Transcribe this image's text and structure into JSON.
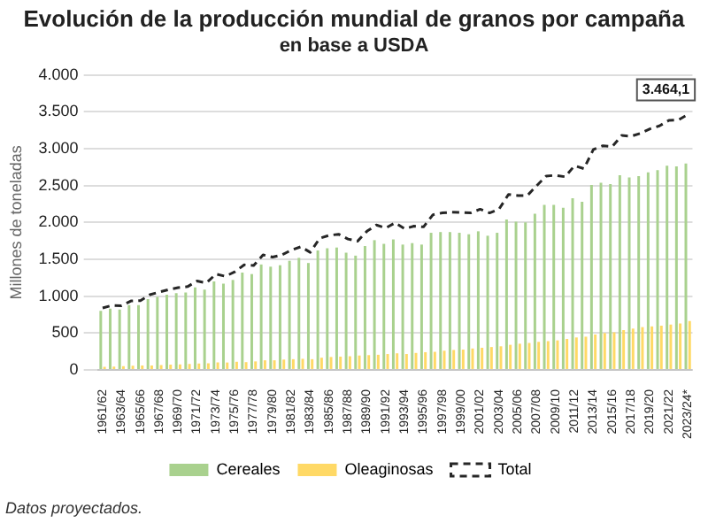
{
  "chart_data": {
    "type": "bar",
    "title": "Evolución de la producción mundial de granos por campaña",
    "subtitle": "en base a USDA",
    "ylabel": "Millones de toneladas",
    "categories": [
      "1961/62",
      null,
      "1963/64",
      null,
      "1965/66",
      null,
      "1967/68",
      null,
      "1969/70",
      null,
      "1971/72",
      null,
      "1973/74",
      null,
      "1975/76",
      null,
      "1977/78",
      null,
      "1979/80",
      null,
      "1981/82",
      null,
      "1983/84",
      null,
      "1985/86",
      null,
      "1987/88",
      null,
      "1989/90",
      null,
      "1991/92",
      null,
      "1993/94",
      null,
      "1995/96",
      null,
      "1997/98",
      null,
      "1999/00",
      null,
      "2001/02",
      null,
      "2003/04",
      null,
      "2005/06",
      null,
      "2007/08",
      null,
      "2009/10",
      null,
      "2011/12",
      null,
      "2013/14",
      null,
      "2015/16",
      null,
      "2017/18",
      null,
      "2019/20",
      null,
      "2021/22",
      null,
      "2023/24*"
    ],
    "series": [
      {
        "name": "Cereales",
        "color": "#a9d18e",
        "values": [
          800,
          830,
          820,
          880,
          880,
          960,
          990,
          1020,
          1040,
          1050,
          1120,
          1090,
          1200,
          1170,
          1220,
          1320,
          1300,
          1430,
          1400,
          1420,
          1480,
          1520,
          1450,
          1620,
          1650,
          1660,
          1590,
          1550,
          1680,
          1760,
          1710,
          1770,
          1700,
          1720,
          1700,
          1860,
          1870,
          1870,
          1860,
          1840,
          1880,
          1820,
          1860,
          2040,
          2010,
          2000,
          2120,
          2240,
          2240,
          2200,
          2330,
          2280,
          2510,
          2540,
          2520,
          2640,
          2610,
          2630,
          2680,
          2710,
          2770,
          2760,
          2800
        ]
      },
      {
        "name": "Oleaginosas",
        "color": "#ffd966",
        "values": [
          40,
          45,
          50,
          55,
          60,
          60,
          65,
          70,
          75,
          80,
          85,
          90,
          100,
          100,
          110,
          105,
          115,
          130,
          130,
          140,
          145,
          150,
          145,
          165,
          175,
          180,
          185,
          195,
          200,
          205,
          215,
          225,
          215,
          230,
          240,
          245,
          260,
          270,
          275,
          290,
          300,
          310,
          320,
          340,
          355,
          365,
          380,
          390,
          400,
          420,
          440,
          450,
          480,
          500,
          510,
          540,
          560,
          580,
          590,
          600,
          615,
          630,
          664
        ]
      },
      {
        "name": "Total",
        "type": "line",
        "color": "#262626",
        "line_style": "dashed",
        "marker": "none",
        "values": [
          840,
          875,
          870,
          935,
          940,
          1020,
          1055,
          1090,
          1115,
          1130,
          1205,
          1180,
          1300,
          1270,
          1330,
          1425,
          1415,
          1560,
          1530,
          1560,
          1625,
          1670,
          1595,
          1785,
          1825,
          1840,
          1775,
          1745,
          1880,
          1965,
          1925,
          1995,
          1915,
          1950,
          1940,
          2105,
          2130,
          2140,
          2135,
          2130,
          2180,
          2130,
          2180,
          2380,
          2365,
          2365,
          2500,
          2630,
          2640,
          2620,
          2770,
          2730,
          2990,
          3040,
          3030,
          3180,
          3170,
          3210,
          3270,
          3310,
          3385,
          3390,
          3464.1
        ]
      }
    ],
    "ylim": [
      0,
      4000
    ],
    "yticks": [
      0,
      {
        "value": 500,
        "label": "500"
      },
      {
        "value": 1000,
        "label": "1.000"
      },
      {
        "value": 1500,
        "label": "1.500"
      },
      {
        "value": 2000,
        "label": "2.000"
      },
      {
        "value": 2500,
        "label": "2.500"
      },
      {
        "value": 3000,
        "label": "3.000"
      },
      {
        "value": 3500,
        "label": "3.500"
      },
      {
        "value": 4000,
        "label": "4.000"
      }
    ],
    "grid": "y",
    "legend": "bottom",
    "annotations": [
      {
        "text": "3.464,1",
        "x": "2023/24*",
        "y": 3464.1
      },
      "Datos proyectados."
    ]
  }
}
